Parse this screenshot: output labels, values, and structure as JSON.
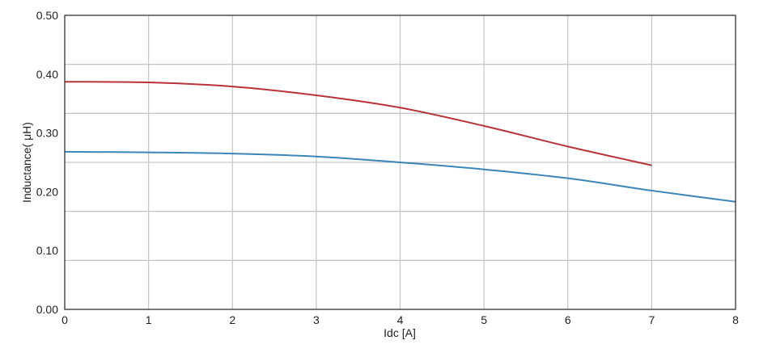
{
  "chart_data": {
    "type": "line",
    "title": "",
    "xlabel": "Idc [A]",
    "ylabel": "Inductance( μH)",
    "xlim": [
      0,
      8
    ],
    "ylim": [
      0,
      0.5
    ],
    "x_ticks": [
      "0",
      "1",
      "2",
      "3",
      "4",
      "5",
      "6",
      "7",
      "8"
    ],
    "y_ticks": [
      "0.00",
      "0.10",
      "0.20",
      "0.30",
      "0.40",
      "0.50"
    ],
    "grid": true,
    "series": [
      {
        "color": "#b83236",
        "x": [
          0,
          1,
          2,
          3,
          4,
          5,
          6,
          7
        ],
        "values": [
          0.387,
          0.386,
          0.379,
          0.364,
          0.343,
          0.312,
          0.277,
          0.245
        ]
      },
      {
        "color": "#3a86b8",
        "x": [
          0,
          1,
          2,
          3,
          4,
          5,
          6,
          7,
          8
        ],
        "values": [
          0.268,
          0.267,
          0.265,
          0.26,
          0.25,
          0.238,
          0.223,
          0.202,
          0.183
        ]
      }
    ]
  }
}
